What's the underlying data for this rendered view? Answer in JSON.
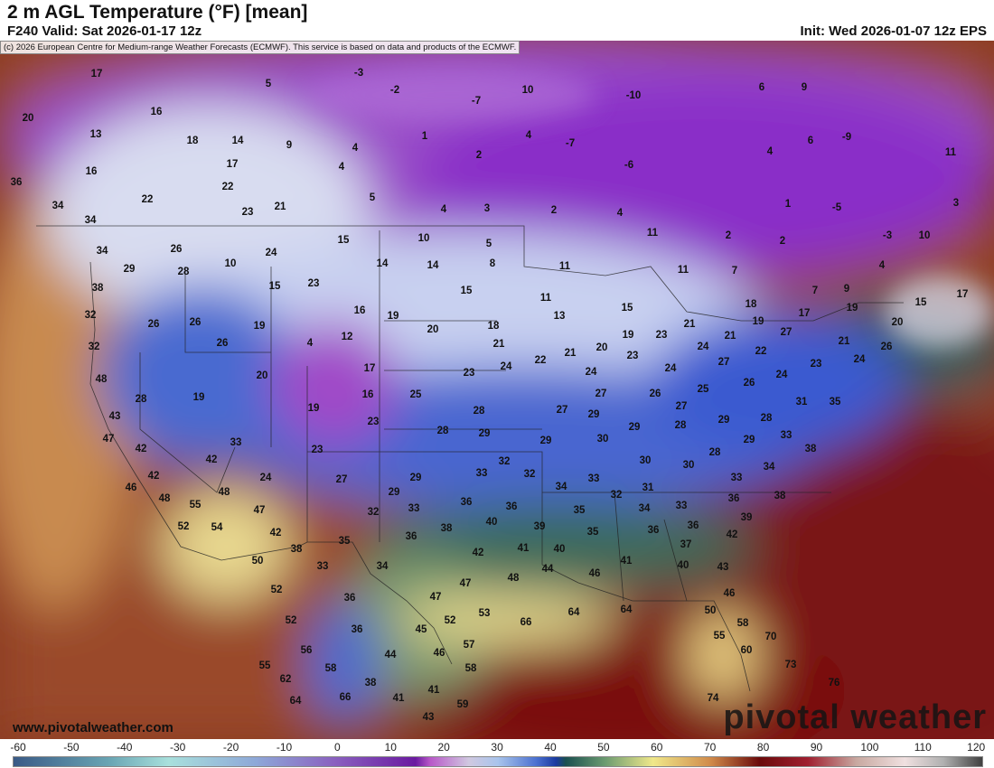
{
  "header": {
    "title": "2 m AGL Temperature (°F) [mean]",
    "valid": "F240 Valid: Sat 2026-01-17 12z",
    "init": "Init: Wed 2026-01-07 12z EPS"
  },
  "map": {
    "copyright": "(c) 2026 European Centre for Medium-range Weather Forecasts (ECMWF). This service is based on data and products of the ECMWF.",
    "website": "www.pivotalweather.com",
    "brand": "pivotal weather",
    "temperature_labels": [
      "17",
      "5",
      "-3",
      "-2",
      "10",
      "-10",
      "6",
      "9",
      "20",
      "16",
      "-7",
      "13",
      "18",
      "14",
      "9",
      "4",
      "1",
      "4",
      "-7",
      "6",
      "-9",
      "11",
      "16",
      "17",
      "4",
      "2",
      "4",
      "-6",
      "36",
      "22",
      "22",
      "5",
      "34",
      "23",
      "21",
      "4",
      "3",
      "2",
      "4",
      "1",
      "-5",
      "3",
      "34",
      "26",
      "15",
      "10",
      "5",
      "11",
      "2",
      "2",
      "-3",
      "10",
      "34",
      "24",
      "10",
      "14",
      "14",
      "8",
      "11",
      "11",
      "7",
      "4",
      "29",
      "28",
      "15",
      "23",
      "15",
      "11",
      "7",
      "9",
      "15",
      "17",
      "38",
      "18",
      "15",
      "17",
      "19",
      "20",
      "32",
      "26",
      "26",
      "16",
      "19",
      "13",
      "19",
      "19",
      "20",
      "18",
      "19",
      "23",
      "21",
      "27",
      "21",
      "32",
      "26",
      "4",
      "12",
      "21",
      "21",
      "20",
      "23",
      "24",
      "22",
      "21",
      "26",
      "48",
      "20",
      "17",
      "23",
      "24",
      "22",
      "24",
      "24",
      "27",
      "23",
      "24",
      "28",
      "19",
      "16",
      "25",
      "26",
      "25",
      "24",
      "26",
      "31",
      "35",
      "43",
      "19",
      "23",
      "28",
      "27",
      "29",
      "27",
      "27",
      "29",
      "28",
      "29",
      "28",
      "47",
      "28",
      "29",
      "30",
      "29",
      "29",
      "33",
      "38",
      "42",
      "33",
      "23",
      "42",
      "28",
      "30",
      "30",
      "34",
      "42",
      "24",
      "27",
      "29",
      "33",
      "32",
      "32",
      "33",
      "31",
      "33",
      "46",
      "48",
      "29",
      "34",
      "32",
      "36",
      "38",
      "48",
      "55",
      "47",
      "33",
      "36",
      "36",
      "34",
      "33",
      "39",
      "32",
      "52",
      "54",
      "42",
      "38",
      "40",
      "39",
      "35",
      "35",
      "36",
      "36",
      "42",
      "38",
      "35",
      "36",
      "42",
      "41",
      "40",
      "37",
      "50",
      "33",
      "34",
      "44",
      "40",
      "41",
      "43",
      "48",
      "46",
      "52",
      "36",
      "47",
      "47",
      "46",
      "52",
      "36",
      "45",
      "52",
      "53",
      "66",
      "64",
      "64",
      "50",
      "58",
      "55",
      "70",
      "56",
      "44",
      "46",
      "57",
      "60",
      "55",
      "58",
      "58",
      "73",
      "62",
      "38",
      "76",
      "64",
      "66",
      "41",
      "41",
      "59",
      "74",
      "43"
    ]
  },
  "colorbar": {
    "ticks": [
      "-60",
      "-50",
      "-40",
      "-30",
      "-20",
      "-10",
      "0",
      "10",
      "20",
      "30",
      "40",
      "50",
      "60",
      "70",
      "80",
      "90",
      "100",
      "110",
      "120"
    ]
  }
}
